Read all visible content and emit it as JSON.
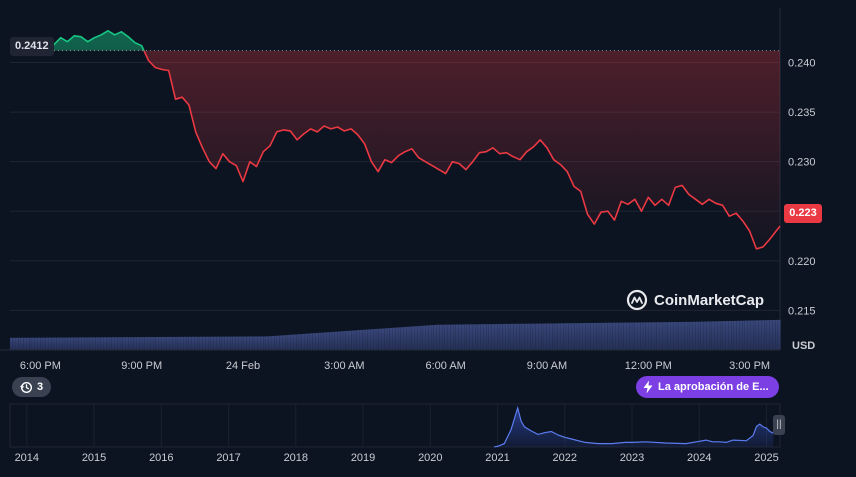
{
  "chart_data": [
    {
      "type": "line",
      "title": "",
      "xlabel": "",
      "ylabel": "USD",
      "y_unit": "USD",
      "ylim": [
        0.211,
        0.2455
      ],
      "grid": true,
      "reference_price": 0.2412,
      "reference_label": "0.2412",
      "current_price_label": "0.223",
      "y_tick_labels": [
        "0.240",
        "0.235",
        "0.230",
        "0.225",
        "0.220",
        "0.215"
      ],
      "y_ticks": [
        0.24,
        0.235,
        0.23,
        0.225,
        0.22,
        0.215
      ],
      "x_tick_labels": [
        "6:00 PM",
        "9:00 PM",
        "24 Feb",
        "3:00 AM",
        "6:00 AM",
        "9:00 AM",
        "12:00 PM",
        "3:00 PM"
      ],
      "x_ticks_hours": [
        0,
        3,
        6,
        9,
        12,
        15,
        18,
        21
      ],
      "x_domain_hours": [
        -0.9,
        21.9
      ],
      "colors": {
        "up": "#16c784",
        "down": "#ea3943",
        "volume": "#2a3a66"
      },
      "series": [
        {
          "values_hours": [
            -0.9,
            -0.7,
            -0.5,
            -0.3,
            -0.2,
            -0.1,
            0.0,
            0.2,
            0.4,
            0.6,
            0.8,
            1.0,
            1.2,
            1.4,
            1.6,
            1.8,
            2.0,
            2.2,
            2.4,
            2.6,
            2.8,
            3.0,
            3.2,
            3.4,
            3.6,
            3.8,
            4.0,
            4.2,
            4.4,
            4.6,
            4.8,
            5.0,
            5.2,
            5.4,
            5.6,
            5.8,
            6.0,
            6.2,
            6.4,
            6.6,
            6.8,
            7.0,
            7.2,
            7.4,
            7.6,
            7.8,
            8.0,
            8.2,
            8.4,
            8.6,
            8.8,
            9.0,
            9.2,
            9.4,
            9.6,
            9.8,
            10.0,
            10.2,
            10.4,
            10.6,
            10.8,
            11.0,
            11.2,
            11.4,
            11.6,
            11.8,
            12.0,
            12.2,
            12.4,
            12.6,
            12.8,
            13.0,
            13.2,
            13.4,
            13.6,
            13.8,
            14.0,
            14.2,
            14.4,
            14.6,
            14.8,
            15.0,
            15.2,
            15.4,
            15.6,
            15.8,
            16.0,
            16.2,
            16.4,
            16.6,
            16.8,
            17.0,
            17.2,
            17.4,
            17.6,
            17.8,
            18.0,
            18.2,
            18.4,
            18.6,
            18.8,
            19.0,
            19.2,
            19.4,
            19.6,
            19.8,
            20.0,
            20.2,
            20.4,
            20.6,
            20.8,
            21.0,
            21.2,
            21.4,
            21.6,
            21.9
          ],
          "values": [
            0.2412,
            0.2412,
            0.2413,
            0.2416,
            0.2418,
            0.2417,
            0.2414,
            0.2411,
            0.2418,
            0.2425,
            0.2421,
            0.2427,
            0.2426,
            0.2421,
            0.2425,
            0.2428,
            0.2432,
            0.2428,
            0.2431,
            0.2426,
            0.242,
            0.2417,
            0.2402,
            0.2395,
            0.2393,
            0.2392,
            0.2363,
            0.2365,
            0.2357,
            0.233,
            0.2314,
            0.23,
            0.2293,
            0.2308,
            0.23,
            0.2296,
            0.228,
            0.23,
            0.2295,
            0.231,
            0.2316,
            0.233,
            0.2332,
            0.2331,
            0.2322,
            0.2328,
            0.2333,
            0.233,
            0.2336,
            0.2333,
            0.2335,
            0.2331,
            0.2333,
            0.2327,
            0.2318,
            0.23,
            0.229,
            0.2302,
            0.2299,
            0.2306,
            0.231,
            0.2313,
            0.2304,
            0.23,
            0.2296,
            0.2292,
            0.2288,
            0.23,
            0.2298,
            0.2292,
            0.23,
            0.2309,
            0.231,
            0.2314,
            0.2308,
            0.2309,
            0.2305,
            0.2302,
            0.231,
            0.2315,
            0.2322,
            0.2314,
            0.2302,
            0.2297,
            0.229,
            0.2275,
            0.227,
            0.2247,
            0.2237,
            0.2249,
            0.225,
            0.2241,
            0.226,
            0.2257,
            0.2262,
            0.225,
            0.2264,
            0.2256,
            0.2262,
            0.2256,
            0.2274,
            0.2276,
            0.2267,
            0.2262,
            0.2257,
            0.2262,
            0.2258,
            0.2256,
            0.2245,
            0.2248,
            0.224,
            0.223,
            0.2212,
            0.2214,
            0.2222,
            0.2235
          ]
        }
      ],
      "volume_level": [
        0.25,
        0.26,
        0.27,
        0.28,
        0.4,
        0.52,
        0.54,
        0.56,
        0.58,
        0.62
      ]
    },
    {
      "type": "area",
      "title": "",
      "x_tick_labels": [
        "2014",
        "2015",
        "2016",
        "2017",
        "2018",
        "2019",
        "2020",
        "2021",
        "2022",
        "2023",
        "2024",
        "2025"
      ],
      "x_ticks": [
        2014,
        2015,
        2016,
        2017,
        2018,
        2019,
        2020,
        2021,
        2022,
        2023,
        2024,
        2025
      ],
      "x_domain": [
        2013.75,
        2025.2
      ],
      "ylim": [
        0,
        0.75
      ],
      "x": [
        2020.95,
        2021.0,
        2021.1,
        2021.2,
        2021.3,
        2021.35,
        2021.4,
        2021.5,
        2021.6,
        2021.7,
        2021.8,
        2021.9,
        2022.0,
        2022.1,
        2022.3,
        2022.5,
        2022.7,
        2022.9,
        2023.0,
        2023.2,
        2023.5,
        2023.8,
        2024.0,
        2024.1,
        2024.2,
        2024.3,
        2024.4,
        2024.5,
        2024.7,
        2024.8,
        2024.85,
        2024.9,
        2024.95,
        2025.0,
        2025.05,
        2025.1
      ],
      "values": [
        0.003,
        0.01,
        0.06,
        0.3,
        0.68,
        0.45,
        0.35,
        0.28,
        0.22,
        0.25,
        0.27,
        0.21,
        0.17,
        0.14,
        0.08,
        0.06,
        0.06,
        0.08,
        0.08,
        0.09,
        0.07,
        0.06,
        0.1,
        0.12,
        0.09,
        0.09,
        0.08,
        0.12,
        0.11,
        0.2,
        0.36,
        0.4,
        0.35,
        0.33,
        0.27,
        0.24
      ],
      "color": "#3b5bdb"
    }
  ],
  "ui": {
    "start_price_tag": "0.2412",
    "current_price_tag": "0.223",
    "currency_label": "USD",
    "events_count": "3",
    "news_pill_text": "La aprobación de E...",
    "brand_name": "CoinMarketCap",
    "icons": {
      "history": "history-icon",
      "lightning": "lightning-icon",
      "brand": "coinmarketcap-logo",
      "handle": "range-handle-icon"
    }
  }
}
